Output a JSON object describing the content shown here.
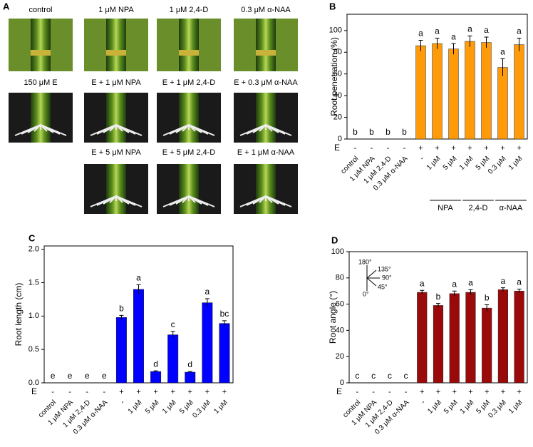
{
  "photo_panel": {
    "label": "A",
    "images": [
      {
        "label": "control"
      },
      {
        "label": "1 μM NPA"
      },
      {
        "label": "1 μM 2,4-D"
      },
      {
        "label": "0.3 μM α-NAA"
      },
      {
        "label": "150 μM E"
      },
      {
        "label": "E + 1 μM NPA"
      },
      {
        "label": "E + 1 μM 2,4-D"
      },
      {
        "label": "E + 0.3 μM α-NAA"
      },
      {
        "label": "E + 5 μM NPA"
      },
      {
        "label": "E + 5 μM 2,4-D"
      },
      {
        "label": "E + 1 μM α-NAA"
      }
    ]
  },
  "chart_data": [
    {
      "type": "bar",
      "panel_label": "B",
      "y_label": "Root penetration (%)",
      "color": "#ff9a0a",
      "categories": [
        "control",
        "1 μM NPA",
        "1 μM 2,4-D",
        "0.3 μM α-NAA",
        "-",
        "1 μM",
        "5 μM",
        "1 μM",
        "5 μM",
        "0.3 μM",
        "1 μM"
      ],
      "treatment_label": "E",
      "treatment": [
        "-",
        "-",
        "-",
        "-",
        "+",
        "+",
        "+",
        "+",
        "+",
        "+",
        "+"
      ],
      "groups": [
        null,
        null,
        null,
        null,
        null,
        "NPA",
        "NPA",
        "2,4-D",
        "2,4-D",
        "α-NAA",
        "α-NAA"
      ],
      "values": [
        0,
        0,
        0,
        0,
        86,
        88,
        83,
        90,
        89,
        66,
        87
      ],
      "errors": [
        0,
        0,
        0,
        0,
        5,
        5,
        5,
        5,
        5,
        8,
        6
      ],
      "annotations": [
        "b",
        "b",
        "b",
        "b",
        "a",
        "a",
        "a",
        "a",
        "a",
        "a",
        "a"
      ],
      "ylim": [
        0,
        115
      ],
      "yticks": [
        0,
        20,
        40,
        60,
        80,
        100
      ]
    },
    {
      "type": "bar",
      "panel_label": "C",
      "y_label": "Root length (cm)",
      "color": "#0000ff",
      "categories": [
        "control",
        "1 μM NPA",
        "1 μM 2,4-D",
        "0.3 μM α-NAA",
        "-",
        "1 μM",
        "5 μM",
        "1 μM",
        "5 μM",
        "0.3 μM",
        "1 μM"
      ],
      "treatment_label": "E",
      "treatment": [
        "-",
        "-",
        "-",
        "-",
        "+",
        "+",
        "+",
        "+",
        "+",
        "+",
        "+"
      ],
      "groups": [
        null,
        null,
        null,
        null,
        null,
        "NPA",
        "NPA",
        "2,4-D",
        "2,4-D",
        "α-NAA",
        "α-NAA"
      ],
      "values": [
        0,
        0,
        0,
        0,
        0.98,
        1.4,
        0.17,
        0.72,
        0.16,
        1.2,
        0.89
      ],
      "errors": [
        0,
        0,
        0,
        0,
        0.03,
        0.07,
        0.01,
        0.05,
        0.01,
        0.06,
        0.04
      ],
      "annotations": [
        "e",
        "e",
        "e",
        "e",
        "b",
        "a",
        "d",
        "c",
        "d",
        "a",
        "bc"
      ],
      "ylim": [
        0,
        2.05
      ],
      "yticks": [
        {
          "value": 0,
          "label": "0.0"
        },
        0.5,
        {
          "value": 1,
          "label": "1.0"
        },
        1.5,
        {
          "value": 2,
          "label": "2.0"
        }
      ]
    },
    {
      "type": "bar",
      "panel_label": "D",
      "y_label": "Root angle (°)",
      "color": "#9b0a0a",
      "categories": [
        "control",
        "1 μM NPA",
        "1 μM 2,4-D",
        "0.3 μM α-NAA",
        "-",
        "1 μM",
        "5 μM",
        "1 μM",
        "5 μM",
        "0.3 μM",
        "1 μM"
      ],
      "treatment_label": "E",
      "treatment": [
        "-",
        "-",
        "-",
        "-",
        "+",
        "+",
        "+",
        "+",
        "+",
        "+",
        "+"
      ],
      "groups": [
        null,
        null,
        null,
        null,
        null,
        "NPA",
        "NPA",
        "2,4-D",
        "2,4-D",
        "α-NAA",
        "α-NAA"
      ],
      "values": [
        0,
        0,
        0,
        0,
        69,
        59,
        68,
        69,
        57,
        71,
        70
      ],
      "errors": [
        0,
        0,
        0,
        0,
        1.5,
        1.5,
        2,
        2,
        2.5,
        1.5,
        1.5
      ],
      "annotations": [
        "c",
        "c",
        "c",
        "c",
        "a",
        "b",
        "a",
        "a",
        "b",
        "a",
        "a"
      ],
      "ylim": [
        0,
        100
      ],
      "yticks": [
        0,
        20,
        40,
        60,
        80,
        100
      ],
      "inset_labels": [
        "180°",
        "135°",
        "90°",
        "45°",
        "0°"
      ]
    }
  ]
}
